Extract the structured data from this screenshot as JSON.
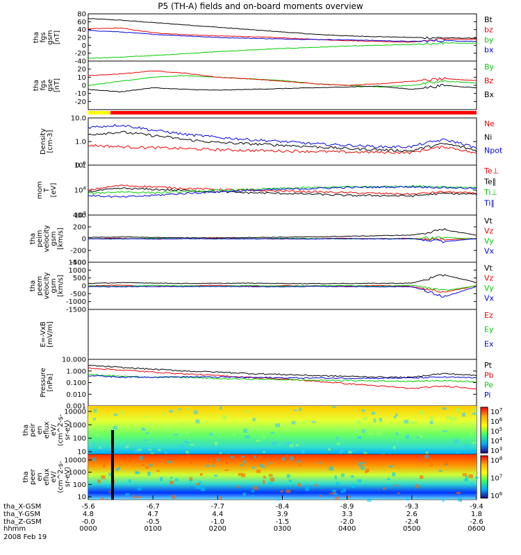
{
  "title": "P5 (TH-A) fields and on-board moments overview",
  "colors": {
    "black": "#000000",
    "red": "#ee0000",
    "green": "#00cc00",
    "blue": "#0000dd",
    "yellow": "#ffff00",
    "flagred": "#ff0000"
  },
  "chart_data": [
    {
      "type": "line",
      "id": "fgs-gsm",
      "ylabel": [
        "tha",
        "fgs",
        "gsm",
        "[nT]"
      ],
      "ylim": [
        -40,
        80
      ],
      "yticks": [
        -40,
        -20,
        0,
        20,
        40,
        60,
        80
      ],
      "series": [
        {
          "name": "Bt",
          "color": "black",
          "values": [
            68,
            64,
            58,
            52,
            46,
            40,
            34,
            28,
            24,
            22,
            20,
            19,
            18
          ]
        },
        {
          "name": "bz",
          "color": "red",
          "values": [
            42,
            44,
            32,
            27,
            24,
            22,
            19,
            15,
            12,
            10,
            8,
            16,
            15
          ]
        },
        {
          "name": "by",
          "color": "green",
          "values": [
            -33,
            -30,
            -26,
            -21,
            -16,
            -12,
            -8,
            -5,
            -2,
            0,
            2,
            6,
            5
          ]
        },
        {
          "name": "bx",
          "color": "blue",
          "values": [
            38,
            34,
            28,
            24,
            20,
            18,
            16,
            15,
            14,
            12,
            10,
            12,
            10
          ]
        }
      ]
    },
    {
      "type": "line",
      "id": "fgs-gse",
      "ylabel": [
        "tha",
        "fgs",
        "gse",
        "[nT]"
      ],
      "ylim": [
        -30,
        30
      ],
      "yticks": [
        -20,
        -10,
        0,
        10,
        20
      ],
      "series": [
        {
          "name": "By",
          "color": "green",
          "values": [
            0,
            5,
            10,
            12,
            10,
            8,
            6,
            2,
            0,
            -2,
            0,
            5,
            3
          ]
        },
        {
          "name": "Bz",
          "color": "red",
          "values": [
            12,
            14,
            18,
            15,
            10,
            8,
            5,
            2,
            0,
            2,
            5,
            8,
            6
          ]
        },
        {
          "name": "Bx",
          "color": "black",
          "values": [
            -5,
            -8,
            -3,
            -5,
            -6,
            -5,
            -4,
            -3,
            -2,
            -1,
            -5,
            0,
            -3
          ]
        }
      ]
    },
    {
      "type": "line",
      "id": "density",
      "ylabel": [
        "Density",
        "[cm-3]"
      ],
      "yscale": "log",
      "ylim": [
        0.1,
        10
      ],
      "ytick_labels": [
        "10.0",
        "1.0",
        "0.1"
      ],
      "series": [
        {
          "name": "Ne",
          "color": "red",
          "values": [
            0.7,
            0.6,
            0.55,
            0.5,
            0.45,
            0.42,
            0.4,
            0.38,
            0.36,
            0.35,
            0.34,
            0.6,
            0.3
          ]
        },
        {
          "name": "Ni",
          "color": "black",
          "values": [
            2.0,
            2.5,
            1.8,
            1.2,
            0.9,
            0.8,
            0.7,
            0.6,
            0.5,
            0.45,
            0.4,
            0.8,
            0.4
          ]
        },
        {
          "name": "Npot",
          "color": "blue",
          "values": [
            4,
            5,
            3,
            2,
            1.5,
            1.2,
            1.0,
            0.8,
            0.7,
            0.6,
            0.6,
            1.2,
            0.5
          ]
        }
      ]
    },
    {
      "type": "line",
      "id": "temperature",
      "ylabel": [
        "mom",
        "T",
        "[eV]"
      ],
      "yscale": "log",
      "ylim": [
        100,
        100000
      ],
      "ytick_labels": [
        "10^5",
        "10^4",
        "10^3"
      ],
      "series": [
        {
          "name": "Te⊥",
          "color": "red",
          "values": [
            3000,
            6000,
            5000,
            4000,
            3500,
            3000,
            2800,
            2500,
            2200,
            2000,
            1800,
            2500,
            2000
          ]
        },
        {
          "name": "Te∥",
          "color": "black",
          "values": [
            2500,
            4000,
            3500,
            3000,
            2500,
            2200,
            2000,
            1800,
            1500,
            1500,
            1400,
            2000,
            1800
          ]
        },
        {
          "name": "Ti⊥",
          "color": "green",
          "values": [
            2000,
            2500,
            2200,
            2500,
            3000,
            3500,
            4000,
            4500,
            5000,
            5000,
            5500,
            5000,
            4500
          ]
        },
        {
          "name": "Ti∥",
          "color": "blue",
          "values": [
            1500,
            1200,
            1500,
            2000,
            2500,
            3000,
            3500,
            4000,
            4500,
            4800,
            5000,
            4500,
            4000
          ]
        }
      ]
    },
    {
      "type": "line",
      "id": "peim-velocity",
      "ylabel": [
        "tha",
        "peim",
        "velocity",
        "gsm",
        "[km/s]"
      ],
      "ylim": [
        -400,
        400
      ],
      "yticks": [
        -400,
        -200,
        0,
        200,
        400
      ],
      "series": [
        {
          "name": "Vt",
          "color": "black",
          "values": [
            20,
            30,
            20,
            15,
            15,
            20,
            25,
            30,
            40,
            50,
            60,
            150,
            60
          ]
        },
        {
          "name": "Vz",
          "color": "red",
          "values": [
            0,
            5,
            -5,
            0,
            5,
            0,
            -5,
            0,
            5,
            0,
            5,
            -20,
            5
          ]
        },
        {
          "name": "Vy",
          "color": "green",
          "values": [
            0,
            -5,
            5,
            0,
            -5,
            0,
            5,
            0,
            -5,
            0,
            -5,
            20,
            -5
          ]
        },
        {
          "name": "Vx",
          "color": "blue",
          "values": [
            -5,
            0,
            -5,
            0,
            0,
            -5,
            0,
            -5,
            0,
            -5,
            0,
            -50,
            0
          ]
        }
      ]
    },
    {
      "type": "line",
      "id": "peem-velocity",
      "ylabel": [
        "tha",
        "peem",
        "velocity",
        "gsm",
        "[km/s]"
      ],
      "ylim": [
        -1500,
        1500
      ],
      "yticks": [
        -1500,
        -1000,
        -500,
        0,
        500,
        1000,
        1500
      ],
      "series": [
        {
          "name": "Vt",
          "color": "black",
          "values": [
            150,
            200,
            180,
            150,
            160,
            170,
            150,
            140,
            150,
            160,
            170,
            700,
            200
          ]
        },
        {
          "name": "Vz",
          "color": "red",
          "values": [
            0,
            50,
            -50,
            0,
            40,
            -30,
            20,
            0,
            -20,
            30,
            -40,
            -400,
            0
          ]
        },
        {
          "name": "Vy",
          "color": "green",
          "values": [
            0,
            -40,
            30,
            0,
            -30,
            20,
            -20,
            0,
            20,
            -30,
            40,
            -300,
            0
          ]
        },
        {
          "name": "Vx",
          "color": "blue",
          "values": [
            -50,
            -60,
            -40,
            -50,
            -40,
            -50,
            -60,
            -40,
            -50,
            -60,
            -50,
            -700,
            -50
          ]
        }
      ]
    },
    {
      "type": "line",
      "id": "efield",
      "ylabel": [
        "E=-VxB",
        "[mV/m]"
      ],
      "ylim": [
        -1,
        1
      ],
      "yticks": [],
      "series": [
        {
          "name": "Ez",
          "color": "red",
          "values": []
        },
        {
          "name": "Ey",
          "color": "green",
          "values": []
        },
        {
          "name": "Ex",
          "color": "blue",
          "values": []
        }
      ]
    },
    {
      "type": "line",
      "id": "pressure",
      "ylabel": [
        "Pressure",
        "[nPa]"
      ],
      "yscale": "log",
      "ylim": [
        0.001,
        10
      ],
      "ytick_labels": [
        "10.000",
        "1.000",
        "0.100",
        "0.010",
        "0.001"
      ],
      "series": [
        {
          "name": "Pt",
          "color": "black",
          "values": [
            3.0,
            2.0,
            1.4,
            1.0,
            0.8,
            0.6,
            0.5,
            0.4,
            0.35,
            0.3,
            0.28,
            0.6,
            0.4
          ]
        },
        {
          "name": "Pb",
          "color": "red",
          "values": [
            1.8,
            1.2,
            0.8,
            0.55,
            0.4,
            0.28,
            0.2,
            0.13,
            0.08,
            0.05,
            0.03,
            0.05,
            0.03
          ]
        },
        {
          "name": "Pe",
          "color": "green",
          "values": [
            0.5,
            0.35,
            0.3,
            0.28,
            0.22,
            0.2,
            0.18,
            0.16,
            0.15,
            0.14,
            0.13,
            0.15,
            0.12
          ]
        },
        {
          "name": "Pi",
          "color": "blue",
          "values": [
            0.4,
            0.3,
            0.3,
            0.32,
            0.3,
            0.28,
            0.26,
            0.25,
            0.24,
            0.24,
            0.25,
            0.3,
            0.25
          ]
        }
      ]
    },
    {
      "type": "heatmap",
      "id": "peir-eflux",
      "ylabel": [
        "tha",
        "peir",
        "en",
        "eflux",
        "eV/",
        "(cm^2-s-",
        "sr-eV)"
      ],
      "yscale": "log",
      "ylim": [
        10,
        20000
      ],
      "ytick_labels": [
        "10000",
        "1000",
        "100",
        "10"
      ],
      "colorbar_labels": [
        "10^7",
        "10^6",
        "10^5",
        "10^4",
        "10^3"
      ]
    },
    {
      "type": "heatmap",
      "id": "peer-eflux",
      "ylabel": [
        "tha",
        "peer",
        "en",
        "eflux",
        "eV/",
        "(cm^2-s-",
        "sr-eV)"
      ],
      "yscale": "log",
      "ylim": [
        10,
        20000
      ],
      "ytick_labels": [
        "10000",
        "1000",
        "100",
        "10"
      ],
      "colorbar_labels": [
        "10^8",
        "10^7",
        "10^6"
      ]
    }
  ],
  "xaxis": {
    "time_labels": [
      "0000",
      "0100",
      "0200",
      "0300",
      "0400",
      "0500",
      "0600"
    ],
    "rows": [
      {
        "label": "tha_X-GSM",
        "values": [
          "-5.6",
          "-6.7",
          "-7.7",
          "-8.4",
          "-8.9",
          "-9.3",
          "-9.4"
        ]
      },
      {
        "label": "tha_Y-GSM",
        "values": [
          "4.8",
          "4.7",
          "4.4",
          "3.9",
          "3.3",
          "2.6",
          "1.8"
        ]
      },
      {
        "label": "tha_Z-GSM",
        "values": [
          "-0.0",
          "-0.5",
          "-1.0",
          "-1.5",
          "-2.0",
          "-2.4",
          "-2.6"
        ]
      },
      {
        "label": "hhmm",
        "values": []
      }
    ],
    "date": "2008 Feb 19"
  }
}
